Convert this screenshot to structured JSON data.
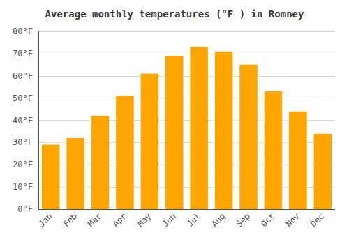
{
  "chart_data": {
    "type": "bar",
    "title": "Average monthly temperatures (°F ) in Romney",
    "categories": [
      "Jan",
      "Feb",
      "Mar",
      "Apr",
      "May",
      "Jun",
      "Jul",
      "Aug",
      "Sep",
      "Oct",
      "Nov",
      "Dec"
    ],
    "values": [
      29,
      32,
      42,
      51,
      61,
      69,
      73,
      71,
      65,
      53,
      44,
      34
    ],
    "color": "#FFA500",
    "ylim": [
      0,
      80
    ],
    "yticks": [
      {
        "value": 0,
        "label": "0°F"
      },
      {
        "value": 10,
        "label": "10°F"
      },
      {
        "value": 20,
        "label": "20°F"
      },
      {
        "value": 30,
        "label": "30°F"
      },
      {
        "value": 40,
        "label": "40°F"
      },
      {
        "value": 50,
        "label": "50°F"
      },
      {
        "value": 60,
        "label": "60°F"
      },
      {
        "value": 70,
        "label": "70°F"
      },
      {
        "value": 80,
        "label": "80°F"
      }
    ],
    "grid": true
  }
}
